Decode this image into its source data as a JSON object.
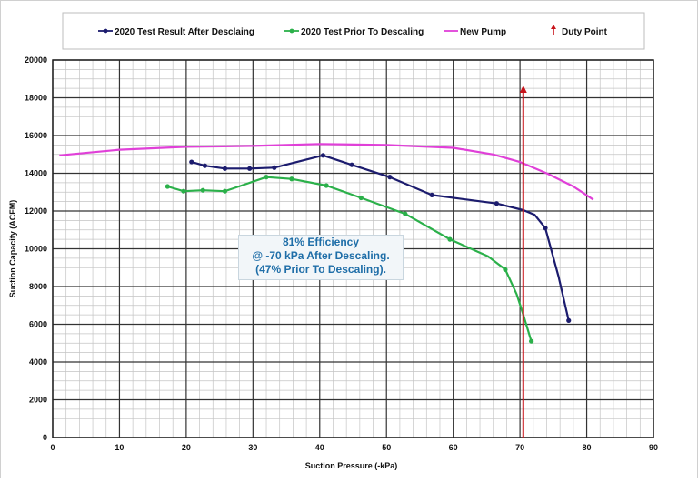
{
  "chart_data": {
    "type": "line",
    "xlabel": "Suction Pressure (-kPa)",
    "ylabel": "Suction Capacity (ACFM)",
    "xlim": [
      0,
      90
    ],
    "ylim": [
      0,
      20000
    ],
    "xticks": [
      "0",
      "10",
      "20",
      "30",
      "40",
      "50",
      "60",
      "70",
      "80",
      "90"
    ],
    "yticks": [
      "0",
      "2000",
      "4000",
      "6000",
      "8000",
      "10000",
      "12000",
      "14000",
      "16000",
      "18000",
      "20000"
    ],
    "grid": true,
    "legend_position": "top",
    "series": [
      {
        "name": "2020 Test Result After Desclaing",
        "color": "#1c1c6e",
        "markers": true,
        "x": [
          20.8,
          22.8,
          25.8,
          29.5,
          33.2,
          40.5,
          44.8,
          50.5,
          56.8,
          66.5,
          70.5,
          72.2,
          73.8,
          75.8,
          77.3
        ],
        "y": [
          14600,
          14400,
          14250,
          14250,
          14300,
          14950,
          14450,
          13800,
          12850,
          12400,
          12050,
          11800,
          11100,
          8500,
          6200
        ],
        "marker_index": [
          0,
          1,
          2,
          3,
          4,
          5,
          6,
          7,
          8,
          9,
          12,
          14
        ]
      },
      {
        "name": "2020 Test Prior To Descaling",
        "color": "#2bb04a",
        "markers": true,
        "x": [
          17.2,
          19.6,
          22.5,
          25.8,
          32.0,
          35.8,
          41.0,
          46.2,
          52.8,
          59.5,
          65.2,
          67.8,
          69.5,
          70.5,
          71.7
        ],
        "y": [
          13300,
          13050,
          13100,
          13050,
          13800,
          13700,
          13350,
          12700,
          11850,
          10500,
          9600,
          8900,
          7600,
          6500,
          5100
        ],
        "marker_index": [
          0,
          1,
          2,
          3,
          4,
          5,
          6,
          7,
          8,
          9,
          11,
          14
        ]
      },
      {
        "name": "New Pump",
        "color": "#e040d8",
        "markers": false,
        "x": [
          1,
          10,
          20,
          30,
          40,
          50,
          60,
          66,
          70,
          74,
          78,
          81
        ],
        "y": [
          14950,
          15250,
          15400,
          15450,
          15550,
          15500,
          15350,
          15000,
          14600,
          14000,
          13300,
          12600
        ],
        "marker_index": []
      }
    ],
    "reference_line": {
      "name": "Duty Point",
      "color": "#c8141b",
      "x": 70.5,
      "y_from": 0,
      "y_to": 18600
    },
    "annotation": {
      "lines": [
        "81% Efficiency",
        "@ -70 kPa After Descaling.",
        "(47% Prior To Descaling)."
      ]
    }
  }
}
